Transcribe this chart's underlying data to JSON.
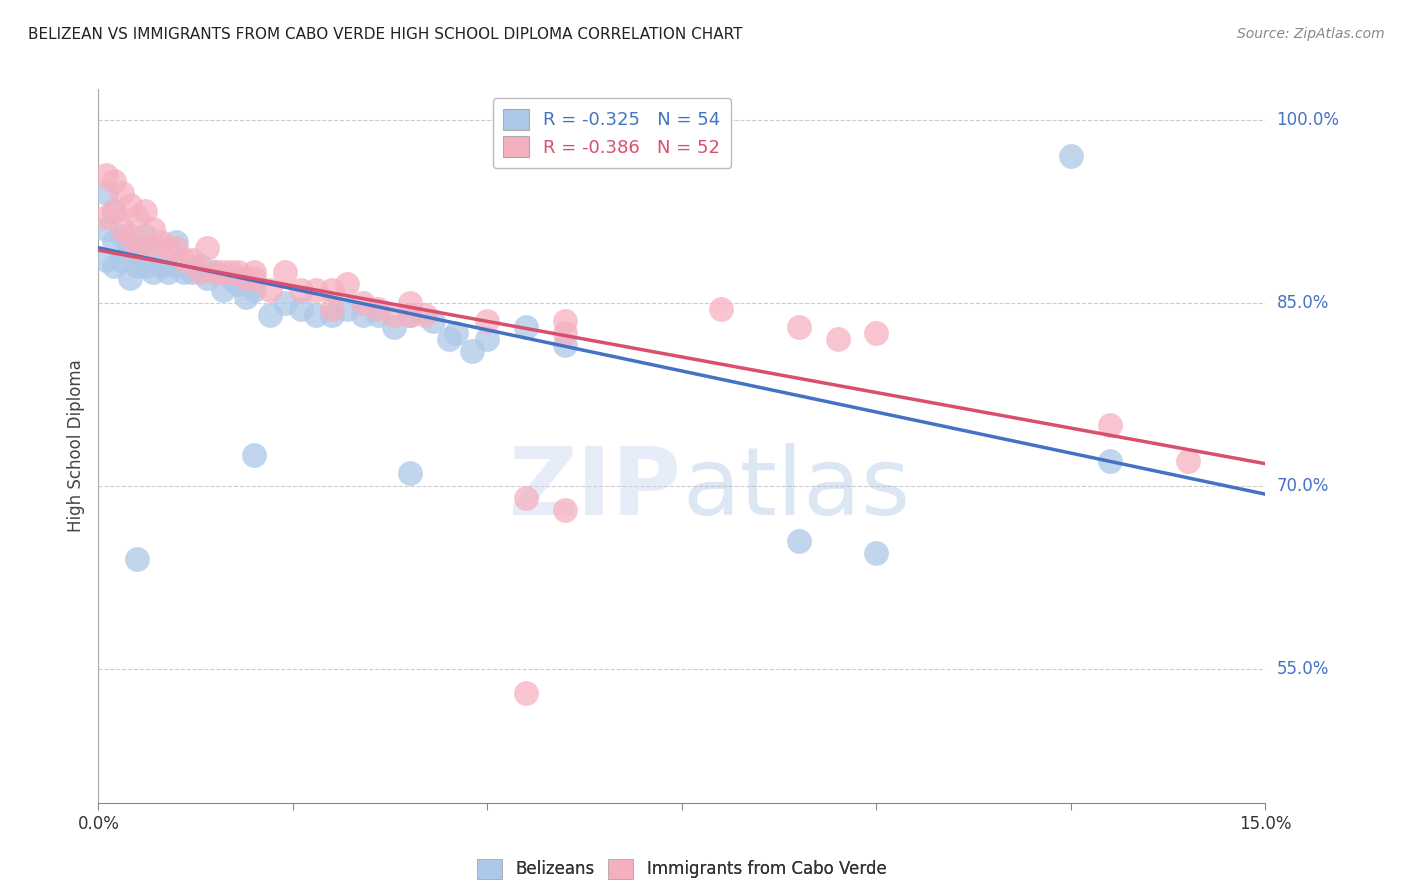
{
  "title": "BELIZEAN VS IMMIGRANTS FROM CABO VERDE HIGH SCHOOL DIPLOMA CORRELATION CHART",
  "source": "Source: ZipAtlas.com",
  "ylabel": "High School Diploma",
  "legend_label_blue": "Belizeans",
  "legend_label_pink": "Immigrants from Cabo Verde",
  "watermark": "ZIPatlas",
  "blue_scatter_color": "#adc8e8",
  "pink_scatter_color": "#f5b0c0",
  "blue_line_color": "#4472c4",
  "pink_line_color": "#d94f6e",
  "x_min": 0.0,
  "x_max": 0.15,
  "y_min": 0.44,
  "y_max": 1.025,
  "ytick_vals": [
    0.55,
    0.7,
    0.85,
    1.0
  ],
  "ytick_labels": [
    "55.0%",
    "70.0%",
    "85.0%",
    "100.0%"
  ],
  "blue_line_x": [
    0.0,
    0.15
  ],
  "blue_line_y": [
    0.895,
    0.693
  ],
  "pink_line_x": [
    0.0,
    0.15
  ],
  "pink_line_y": [
    0.893,
    0.718
  ],
  "blue_points_x": [
    0.001,
    0.001,
    0.001,
    0.002,
    0.002,
    0.002,
    0.003,
    0.003,
    0.004,
    0.004,
    0.005,
    0.005,
    0.006,
    0.006,
    0.007,
    0.007,
    0.008,
    0.009,
    0.01,
    0.01,
    0.011,
    0.012,
    0.013,
    0.014,
    0.015,
    0.016,
    0.017,
    0.018,
    0.019,
    0.02,
    0.022,
    0.024,
    0.026,
    0.028,
    0.03,
    0.032,
    0.034,
    0.036,
    0.038,
    0.04,
    0.043,
    0.046,
    0.05,
    0.055,
    0.06,
    0.005,
    0.02,
    0.04,
    0.09,
    0.1,
    0.125,
    0.13,
    0.045,
    0.048
  ],
  "blue_points_y": [
    0.94,
    0.91,
    0.885,
    0.925,
    0.9,
    0.88,
    0.905,
    0.885,
    0.895,
    0.87,
    0.89,
    0.88,
    0.905,
    0.88,
    0.895,
    0.875,
    0.88,
    0.875,
    0.9,
    0.88,
    0.875,
    0.875,
    0.88,
    0.87,
    0.875,
    0.86,
    0.87,
    0.865,
    0.855,
    0.86,
    0.84,
    0.85,
    0.845,
    0.84,
    0.84,
    0.845,
    0.84,
    0.84,
    0.83,
    0.84,
    0.835,
    0.825,
    0.82,
    0.83,
    0.815,
    0.64,
    0.725,
    0.71,
    0.655,
    0.645,
    0.97,
    0.72,
    0.82,
    0.81
  ],
  "pink_points_x": [
    0.001,
    0.001,
    0.002,
    0.002,
    0.003,
    0.003,
    0.004,
    0.004,
    0.005,
    0.005,
    0.006,
    0.006,
    0.007,
    0.008,
    0.009,
    0.01,
    0.011,
    0.012,
    0.013,
    0.014,
    0.015,
    0.016,
    0.017,
    0.018,
    0.019,
    0.02,
    0.022,
    0.024,
    0.026,
    0.028,
    0.03,
    0.032,
    0.034,
    0.036,
    0.038,
    0.04,
    0.042,
    0.02,
    0.03,
    0.04,
    0.05,
    0.06,
    0.06,
    0.08,
    0.09,
    0.095,
    0.1,
    0.055,
    0.055,
    0.14,
    0.13,
    0.06
  ],
  "pink_points_y": [
    0.955,
    0.92,
    0.95,
    0.925,
    0.94,
    0.91,
    0.93,
    0.905,
    0.92,
    0.895,
    0.925,
    0.895,
    0.91,
    0.9,
    0.895,
    0.895,
    0.885,
    0.885,
    0.875,
    0.895,
    0.875,
    0.875,
    0.875,
    0.875,
    0.87,
    0.875,
    0.86,
    0.875,
    0.86,
    0.86,
    0.86,
    0.865,
    0.85,
    0.845,
    0.84,
    0.85,
    0.84,
    0.87,
    0.845,
    0.84,
    0.835,
    0.835,
    0.825,
    0.845,
    0.83,
    0.82,
    0.825,
    0.53,
    0.69,
    0.72,
    0.75,
    0.68
  ]
}
